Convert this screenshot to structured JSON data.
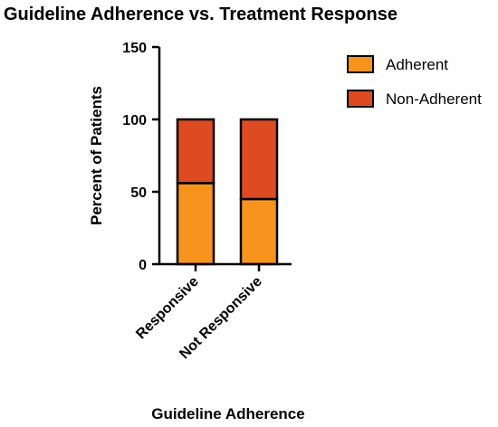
{
  "chart_data": {
    "type": "bar",
    "stacked": true,
    "title": "Guideline Adherence vs. Treatment Response",
    "xlabel": "Guideline Adherence",
    "ylabel": "Percent of Patients",
    "ylim": [
      0,
      150
    ],
    "yticks": [
      0,
      50,
      100,
      150
    ],
    "categories": [
      "Responsive",
      "Not Responsive"
    ],
    "series": [
      {
        "name": "Adherent",
        "values": [
          56,
          45
        ],
        "color": "#f7941d"
      },
      {
        "name": "Non-Adherent",
        "values": [
          44,
          55
        ],
        "color": "#de4a22"
      }
    ],
    "legend_position": "top-right",
    "grid": false
  }
}
